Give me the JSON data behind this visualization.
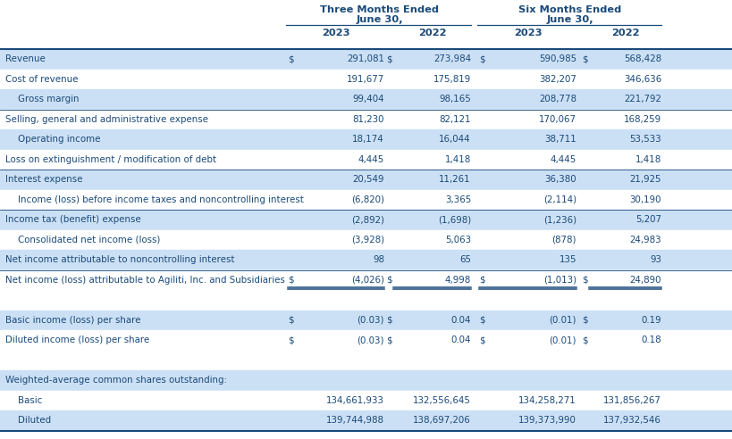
{
  "col_headers": [
    "2023",
    "2022",
    "2023",
    "2022"
  ],
  "blue_bg": "#cce0f5",
  "white_bg": "#ffffff",
  "text_color": "#1a4a7a",
  "border_color": "#1a4a7a",
  "rows": [
    {
      "label": "Revenue",
      "indent": 0,
      "dollar_cols": [
        0,
        2
      ],
      "vals": [
        "291,081",
        "273,984",
        "590,985",
        "568,428"
      ],
      "style": "blue",
      "border_top": true,
      "double_under": false
    },
    {
      "label": "Cost of revenue",
      "indent": 0,
      "dollar_cols": [],
      "vals": [
        "191,677",
        "175,819",
        "382,207",
        "346,636"
      ],
      "style": "white",
      "border_top": false,
      "double_under": false
    },
    {
      "label": "Gross margin",
      "indent": 1,
      "dollar_cols": [],
      "vals": [
        "99,404",
        "98,165",
        "208,778",
        "221,792"
      ],
      "style": "blue",
      "border_top": false,
      "double_under": false
    },
    {
      "label": "Selling, general and administrative expense",
      "indent": 0,
      "dollar_cols": [],
      "vals": [
        "81,230",
        "82,121",
        "170,067",
        "168,259"
      ],
      "style": "white",
      "border_top": true,
      "double_under": false
    },
    {
      "label": "Operating income",
      "indent": 1,
      "dollar_cols": [],
      "vals": [
        "18,174",
        "16,044",
        "38,711",
        "53,533"
      ],
      "style": "blue",
      "border_top": false,
      "double_under": false
    },
    {
      "label": "Loss on extinguishment / modification of debt",
      "indent": 0,
      "dollar_cols": [],
      "vals": [
        "4,445",
        "1,418",
        "4,445",
        "1,418"
      ],
      "style": "white",
      "border_top": false,
      "double_under": false
    },
    {
      "label": "Interest expense",
      "indent": 0,
      "dollar_cols": [],
      "vals": [
        "20,549",
        "11,261",
        "36,380",
        "21,925"
      ],
      "style": "blue",
      "border_top": true,
      "double_under": false
    },
    {
      "label": "Income (loss) before income taxes and noncontrolling interest",
      "indent": 1,
      "dollar_cols": [],
      "vals": [
        "(6,820)",
        "3,365",
        "(2,114)",
        "30,190"
      ],
      "style": "white",
      "border_top": false,
      "double_under": false
    },
    {
      "label": "Income tax (benefit) expense",
      "indent": 0,
      "dollar_cols": [],
      "vals": [
        "(2,892)",
        "(1,698)",
        "(1,236)",
        "5,207"
      ],
      "style": "blue",
      "border_top": true,
      "double_under": false
    },
    {
      "label": "Consolidated net income (loss)",
      "indent": 1,
      "dollar_cols": [],
      "vals": [
        "(3,928)",
        "5,063",
        "(878)",
        "24,983"
      ],
      "style": "white",
      "border_top": false,
      "double_under": false
    },
    {
      "label": "Net income attributable to noncontrolling interest",
      "indent": 0,
      "dollar_cols": [],
      "vals": [
        "98",
        "65",
        "135",
        "93"
      ],
      "style": "blue",
      "border_top": false,
      "double_under": false
    },
    {
      "label": "Net income (loss) attributable to Agiliti, Inc. and Subsidiaries",
      "indent": 0,
      "dollar_cols": [
        0,
        2
      ],
      "vals": [
        "(4,026)",
        "4,998",
        "(1,013)",
        "24,890"
      ],
      "style": "white",
      "border_top": true,
      "double_under": true
    },
    {
      "label": "",
      "indent": 0,
      "dollar_cols": [],
      "vals": [
        "",
        "",
        "",
        ""
      ],
      "style": "white",
      "border_top": false,
      "double_under": false
    },
    {
      "label": "Basic income (loss) per share",
      "indent": 0,
      "dollar_cols": [
        0,
        2
      ],
      "vals": [
        "(0.03)",
        "0.04",
        "(0.01)",
        "0.19"
      ],
      "style": "blue",
      "border_top": false,
      "double_under": false
    },
    {
      "label": "Diluted income (loss) per share",
      "indent": 0,
      "dollar_cols": [
        0,
        2
      ],
      "vals": [
        "(0.03)",
        "0.04",
        "(0.01)",
        "0.18"
      ],
      "style": "white",
      "border_top": false,
      "double_under": false
    },
    {
      "label": "",
      "indent": 0,
      "dollar_cols": [],
      "vals": [
        "",
        "",
        "",
        ""
      ],
      "style": "white",
      "border_top": false,
      "double_under": false
    },
    {
      "label": "Weighted-average common shares outstanding:",
      "indent": 0,
      "dollar_cols": [],
      "vals": [
        "",
        "",
        "",
        ""
      ],
      "style": "blue",
      "border_top": false,
      "double_under": false
    },
    {
      "label": "Basic",
      "indent": 1,
      "dollar_cols": [],
      "vals": [
        "134,661,933",
        "132,556,645",
        "134,258,271",
        "131,856,267"
      ],
      "style": "white",
      "border_top": false,
      "double_under": false
    },
    {
      "label": "Diluted",
      "indent": 1,
      "dollar_cols": [],
      "vals": [
        "139,744,988",
        "138,697,206",
        "139,373,990",
        "137,932,546"
      ],
      "style": "blue",
      "border_top": false,
      "double_under": false
    }
  ],
  "figw": 8.19,
  "figh": 4.92,
  "dpi": 100
}
